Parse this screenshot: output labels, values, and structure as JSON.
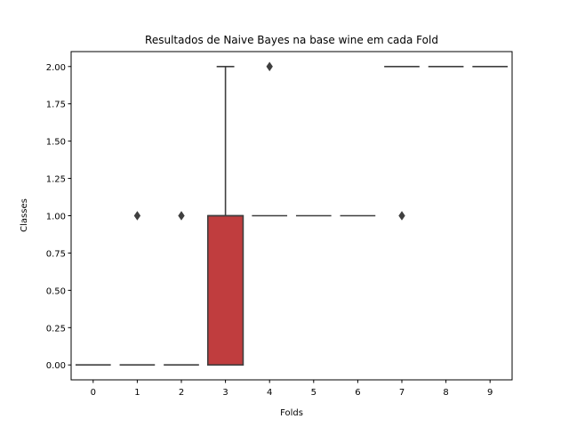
{
  "chart_data": {
    "type": "box",
    "title": "Resultados de Naive Bayes na base wine em cada Fold",
    "xlabel": "Folds",
    "ylabel": "Classes",
    "categories": [
      "0",
      "1",
      "2",
      "3",
      "4",
      "5",
      "6",
      "7",
      "8",
      "9"
    ],
    "ylim": [
      -0.1,
      2.1
    ],
    "yticks": [
      0.0,
      0.25,
      0.5,
      0.75,
      1.0,
      1.25,
      1.5,
      1.75,
      2.0
    ],
    "ytick_labels": [
      "0.00",
      "0.25",
      "0.50",
      "0.75",
      "1.00",
      "1.25",
      "1.50",
      "1.75",
      "2.00"
    ],
    "grid": false,
    "legend": "none",
    "line_color": "#3f3f3f",
    "boxes": [
      {
        "fold": "0",
        "q1": 0,
        "median": 0,
        "q3": 0,
        "whisker_low": 0,
        "whisker_high": 0,
        "fliers": [],
        "fill": "#3274a1"
      },
      {
        "fold": "1",
        "q1": 0,
        "median": 0,
        "q3": 0,
        "whisker_low": 0,
        "whisker_high": 0,
        "fliers": [
          1
        ],
        "fill": "#e1812c"
      },
      {
        "fold": "2",
        "q1": 0,
        "median": 0,
        "q3": 0,
        "whisker_low": 0,
        "whisker_high": 0,
        "fliers": [
          1
        ],
        "fill": "#3a923a"
      },
      {
        "fold": "3",
        "q1": 0,
        "median": 1,
        "q3": 1,
        "whisker_low": 0,
        "whisker_high": 2,
        "fliers": [],
        "fill": "#c03d3e"
      },
      {
        "fold": "4",
        "q1": 1,
        "median": 1,
        "q3": 1,
        "whisker_low": 1,
        "whisker_high": 1,
        "fliers": [
          2
        ],
        "fill": "#9372b2"
      },
      {
        "fold": "5",
        "q1": 1,
        "median": 1,
        "q3": 1,
        "whisker_low": 1,
        "whisker_high": 1,
        "fliers": [],
        "fill": "#845b53"
      },
      {
        "fold": "6",
        "q1": 1,
        "median": 1,
        "q3": 1,
        "whisker_low": 1,
        "whisker_high": 1,
        "fliers": [],
        "fill": "#d684bd"
      },
      {
        "fold": "7",
        "q1": 2,
        "median": 2,
        "q3": 2,
        "whisker_low": 2,
        "whisker_high": 2,
        "fliers": [
          1
        ],
        "fill": "#7f7f7f"
      },
      {
        "fold": "8",
        "q1": 2,
        "median": 2,
        "q3": 2,
        "whisker_low": 2,
        "whisker_high": 2,
        "fliers": [],
        "fill": "#a9aa35"
      },
      {
        "fold": "9",
        "q1": 2,
        "median": 2,
        "q3": 2,
        "whisker_low": 2,
        "whisker_high": 2,
        "fliers": [],
        "fill": "#2ebdcf"
      }
    ]
  }
}
